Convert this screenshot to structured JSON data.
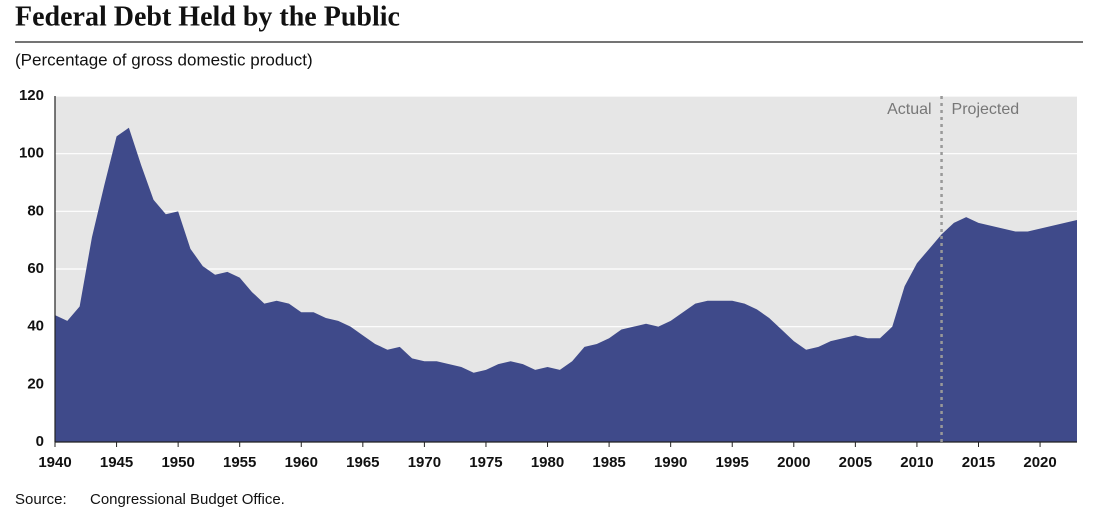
{
  "chart_data": {
    "type": "area",
    "title": "Federal Debt Held by the Public",
    "subtitle": "(Percentage of gross domestic product)",
    "source_label": "Source:",
    "source": "Congressional Budget Office.",
    "color": "#3f4a8a",
    "background": "#e6e6e6",
    "grid": true,
    "x": [
      1940,
      1941,
      1942,
      1943,
      1944,
      1945,
      1946,
      1947,
      1948,
      1949,
      1950,
      1951,
      1952,
      1953,
      1954,
      1955,
      1956,
      1957,
      1958,
      1959,
      1960,
      1961,
      1962,
      1963,
      1964,
      1965,
      1966,
      1967,
      1968,
      1969,
      1970,
      1971,
      1972,
      1973,
      1974,
      1975,
      1976,
      1977,
      1978,
      1979,
      1980,
      1981,
      1982,
      1983,
      1984,
      1985,
      1986,
      1987,
      1988,
      1989,
      1990,
      1991,
      1992,
      1993,
      1994,
      1995,
      1996,
      1997,
      1998,
      1999,
      2000,
      2001,
      2002,
      2003,
      2004,
      2005,
      2006,
      2007,
      2008,
      2009,
      2010,
      2011,
      2012,
      2013,
      2014,
      2015,
      2016,
      2017,
      2018,
      2019,
      2020,
      2021,
      2022,
      2023
    ],
    "values": [
      44,
      42,
      47,
      71,
      89,
      106,
      109,
      96,
      84,
      79,
      80,
      67,
      61,
      58,
      59,
      57,
      52,
      48,
      49,
      48,
      45,
      45,
      43,
      42,
      40,
      37,
      34,
      32,
      33,
      29,
      28,
      28,
      27,
      26,
      24,
      25,
      27,
      28,
      27,
      25,
      26,
      25,
      28,
      33,
      34,
      36,
      39,
      40,
      41,
      40,
      42,
      45,
      48,
      49,
      49,
      49,
      48,
      46,
      43,
      39,
      35,
      32,
      33,
      35,
      36,
      37,
      36,
      36,
      40,
      54,
      62,
      67,
      72,
      76,
      78,
      76,
      75,
      74,
      73,
      73,
      74,
      75,
      76,
      77
    ],
    "xlim": [
      1940,
      2023
    ],
    "xticks": [
      1940,
      1945,
      1950,
      1955,
      1960,
      1965,
      1970,
      1975,
      1980,
      1985,
      1990,
      1995,
      2000,
      2005,
      2010,
      2015,
      2020
    ],
    "ylim": [
      0,
      120
    ],
    "yticks": [
      0,
      20,
      40,
      60,
      80,
      100,
      120
    ],
    "divider": {
      "x": 2012,
      "left_label": "Actual",
      "right_label": "Projected"
    }
  }
}
